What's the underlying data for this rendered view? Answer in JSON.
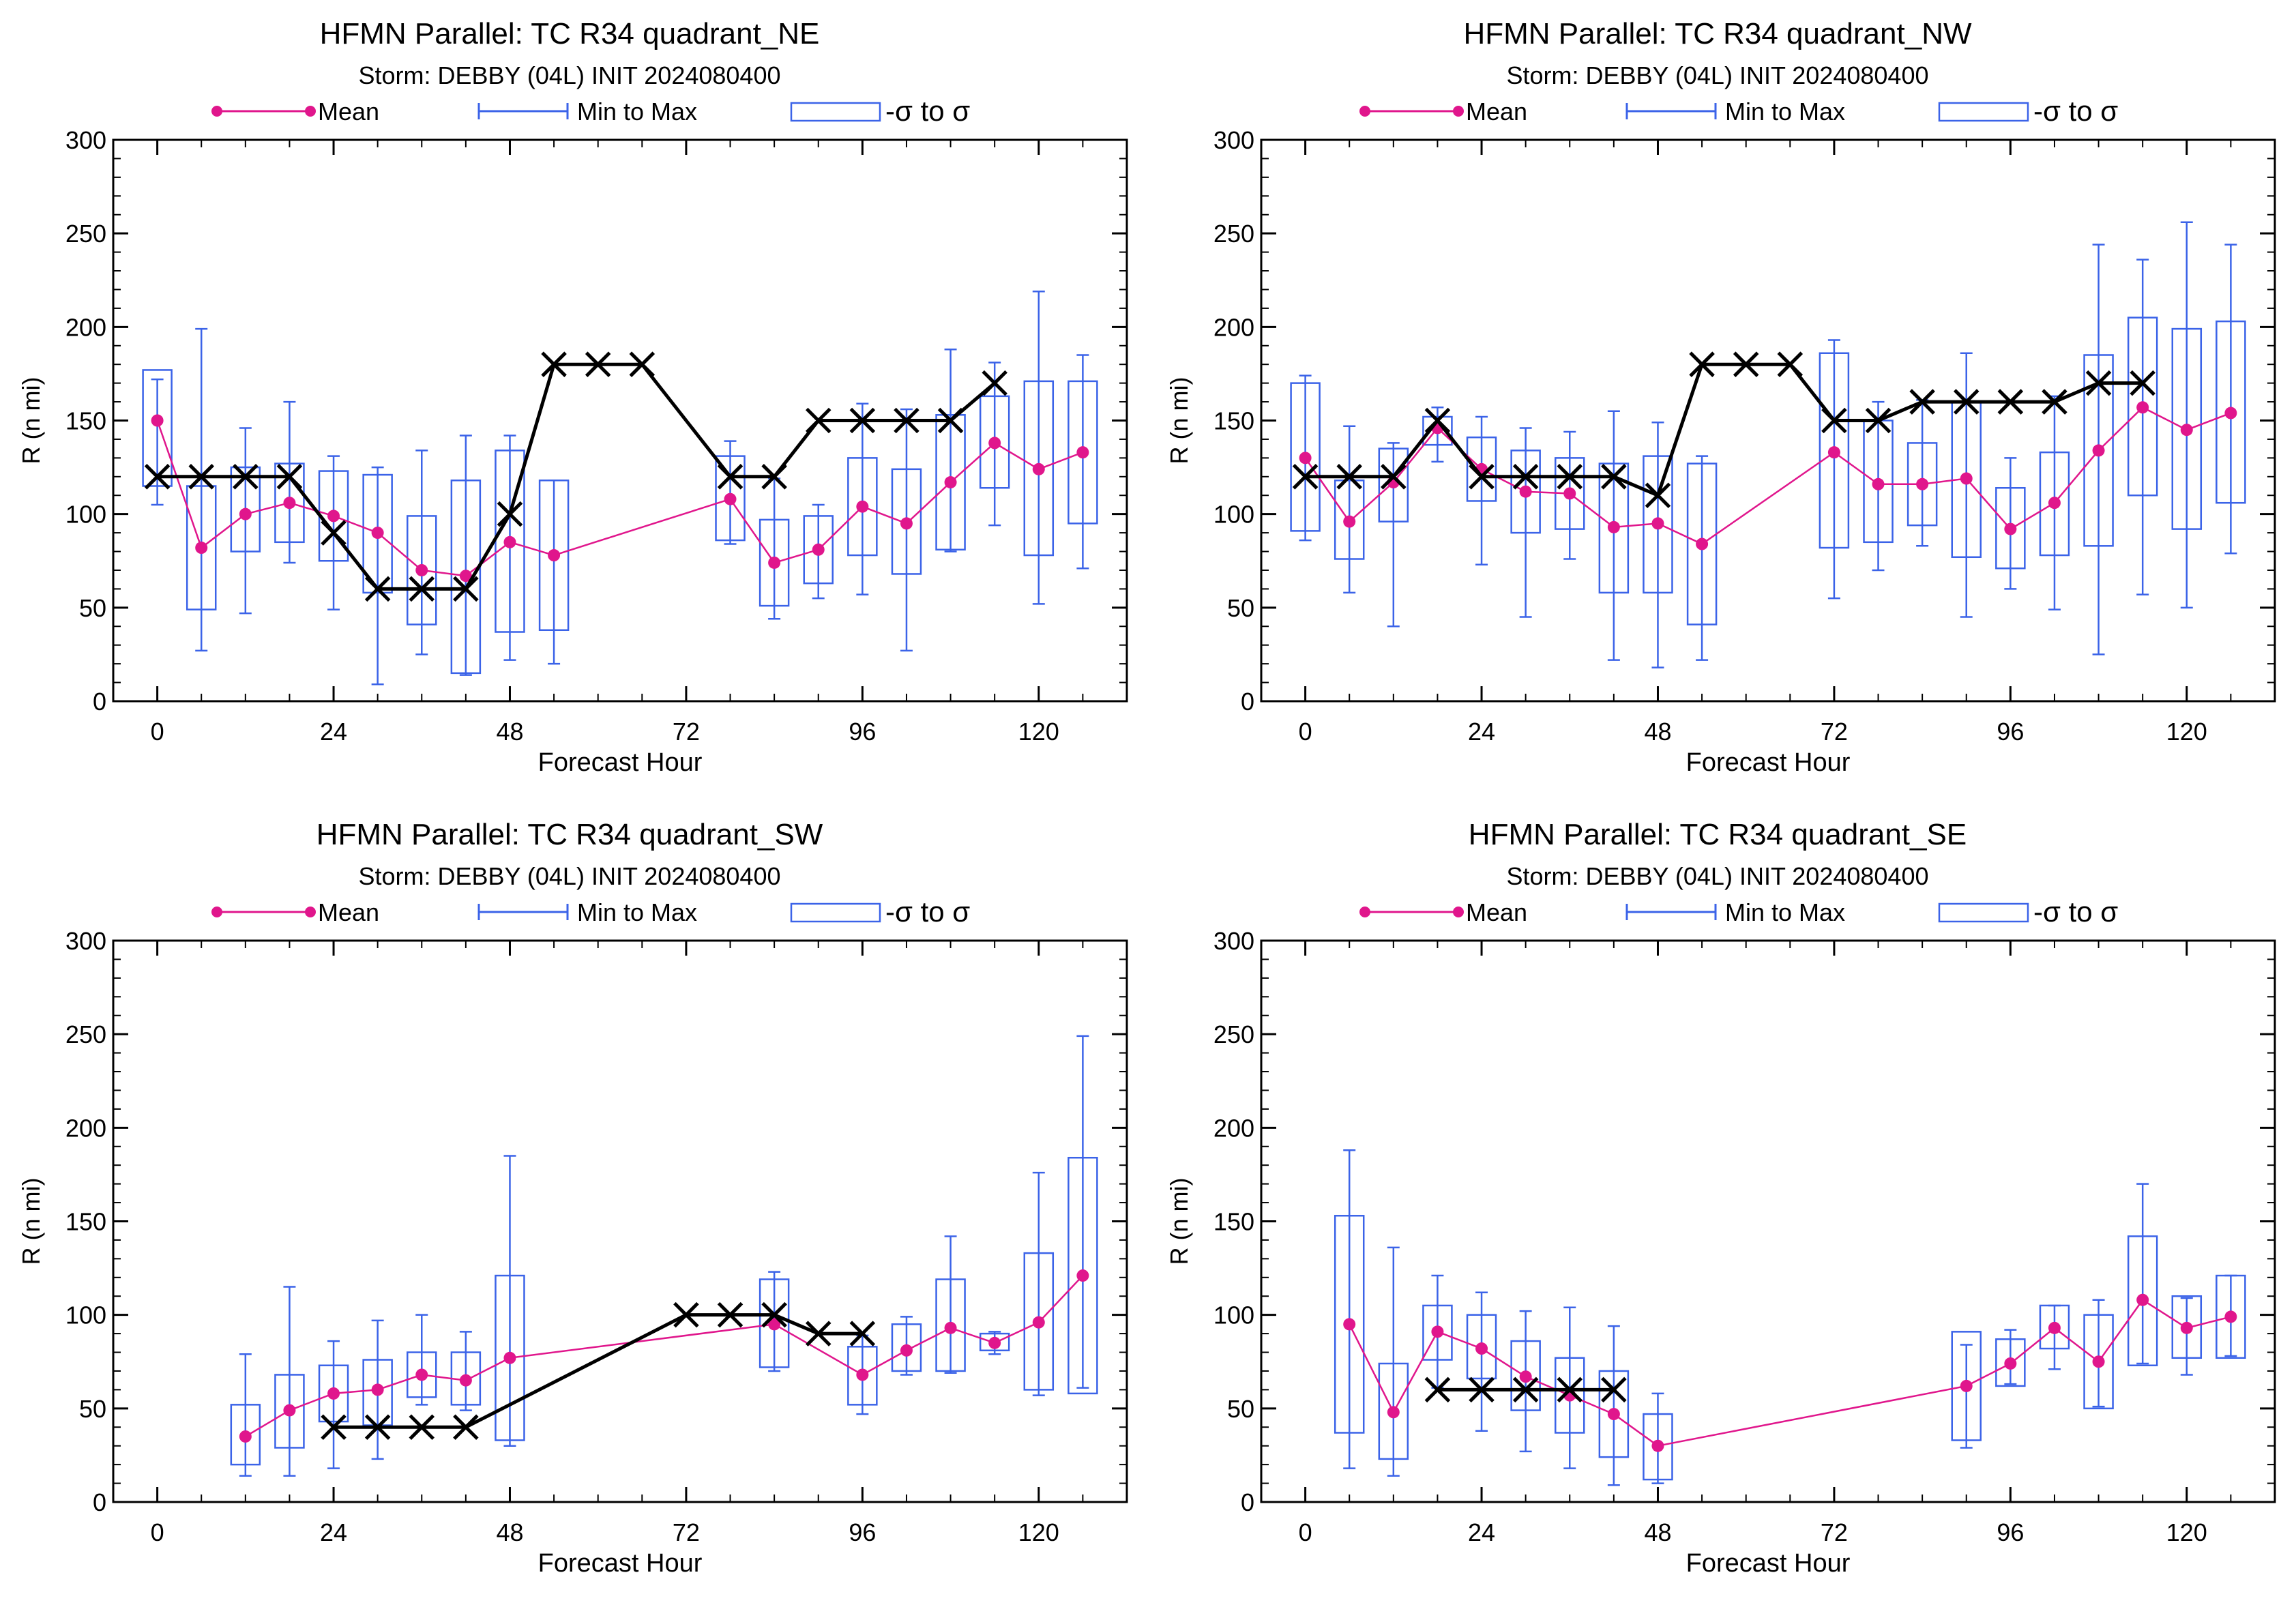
{
  "legend": {
    "mean_label": "Mean",
    "range_label": "Min to Max",
    "sigma_label": "-σ to σ"
  },
  "colors": {
    "mean": "#e0168c",
    "box": "#3b63e8",
    "best_track": "#000000",
    "axis": "#000000"
  },
  "chart_data": [
    {
      "type": "box",
      "title": "HFMN Parallel: TC  R34 quadrant_NE",
      "subtitle": "Storm: DEBBY (04L) INIT 2024080400",
      "xlabel": "Forecast Hour",
      "ylabel": "R (n mi)",
      "xlim": [
        -6,
        132
      ],
      "ylim": [
        0,
        300
      ],
      "xticks": [
        0,
        24,
        48,
        72,
        96,
        120
      ],
      "yticks": [
        0,
        50,
        100,
        150,
        200,
        250,
        300
      ],
      "grid": false,
      "legend_position": "top",
      "boxes": [
        {
          "x": 0,
          "min": 105,
          "max": 172,
          "lo": 115,
          "hi": 177,
          "mean": 150
        },
        {
          "x": 6,
          "min": 27,
          "max": 199,
          "lo": 49,
          "hi": 115,
          "mean": 82
        },
        {
          "x": 12,
          "min": 47,
          "max": 146,
          "lo": 80,
          "hi": 125,
          "mean": 100
        },
        {
          "x": 18,
          "min": 74,
          "max": 160,
          "lo": 85,
          "hi": 127,
          "mean": 106
        },
        {
          "x": 24,
          "min": 49,
          "max": 131,
          "lo": 75,
          "hi": 123,
          "mean": 99
        },
        {
          "x": 30,
          "min": 9,
          "max": 125,
          "lo": 58,
          "hi": 121,
          "mean": 90
        },
        {
          "x": 36,
          "min": 25,
          "max": 134,
          "lo": 41,
          "hi": 99,
          "mean": 70
        },
        {
          "x": 42,
          "min": 14,
          "max": 142,
          "lo": 15,
          "hi": 118,
          "mean": 67
        },
        {
          "x": 48,
          "min": 22,
          "max": 142,
          "lo": 37,
          "hi": 134,
          "mean": 85
        },
        {
          "x": 54,
          "min": 20,
          "max": 118,
          "lo": 38,
          "hi": 118,
          "mean": 78
        },
        {
          "x": 78,
          "min": 84,
          "max": 139,
          "lo": 86,
          "hi": 131,
          "mean": 108
        },
        {
          "x": 84,
          "min": 44,
          "max": 119,
          "lo": 51,
          "hi": 97,
          "mean": 74
        },
        {
          "x": 90,
          "min": 55,
          "max": 105,
          "lo": 63,
          "hi": 99,
          "mean": 81
        },
        {
          "x": 96,
          "min": 57,
          "max": 159,
          "lo": 78,
          "hi": 130,
          "mean": 104
        },
        {
          "x": 102,
          "min": 27,
          "max": 156,
          "lo": 68,
          "hi": 124,
          "mean": 95
        },
        {
          "x": 108,
          "min": 80,
          "max": 188,
          "lo": 81,
          "hi": 153,
          "mean": 117
        },
        {
          "x": 114,
          "min": 94,
          "max": 181,
          "lo": 114,
          "hi": 163,
          "mean": 138
        },
        {
          "x": 120,
          "min": 52,
          "max": 219,
          "lo": 78,
          "hi": 171,
          "mean": 124
        },
        {
          "x": 126,
          "min": 71,
          "max": 185,
          "lo": 95,
          "hi": 171,
          "mean": 133
        }
      ],
      "best_track": [
        [
          [
            0,
            120
          ],
          [
            6,
            120
          ],
          [
            12,
            120
          ],
          [
            18,
            120
          ],
          [
            24,
            90
          ],
          [
            30,
            60
          ],
          [
            36,
            60
          ],
          [
            42,
            60
          ],
          [
            48,
            100
          ],
          [
            54,
            180
          ],
          [
            60,
            180
          ],
          [
            66,
            180
          ],
          [
            78,
            120
          ],
          [
            84,
            120
          ],
          [
            90,
            150
          ],
          [
            96,
            150
          ],
          [
            102,
            150
          ],
          [
            108,
            150
          ],
          [
            114,
            170
          ]
        ]
      ]
    },
    {
      "type": "box",
      "title": "HFMN Parallel: TC  R34 quadrant_NW",
      "subtitle": "Storm: DEBBY (04L) INIT 2024080400",
      "xlabel": "Forecast Hour",
      "ylabel": "R (n mi)",
      "xlim": [
        -6,
        132
      ],
      "ylim": [
        0,
        300
      ],
      "xticks": [
        0,
        24,
        48,
        72,
        96,
        120
      ],
      "yticks": [
        0,
        50,
        100,
        150,
        200,
        250,
        300
      ],
      "grid": false,
      "legend_position": "top",
      "boxes": [
        {
          "x": 0,
          "min": 86,
          "max": 174,
          "lo": 91,
          "hi": 170,
          "mean": 130
        },
        {
          "x": 6,
          "min": 58,
          "max": 147,
          "lo": 76,
          "hi": 118,
          "mean": 96
        },
        {
          "x": 12,
          "min": 40,
          "max": 138,
          "lo": 96,
          "hi": 135,
          "mean": 117
        },
        {
          "x": 18,
          "min": 128,
          "max": 157,
          "lo": 137,
          "hi": 152,
          "mean": 146
        },
        {
          "x": 24,
          "min": 73,
          "max": 152,
          "lo": 107,
          "hi": 141,
          "mean": 124
        },
        {
          "x": 30,
          "min": 45,
          "max": 146,
          "lo": 90,
          "hi": 134,
          "mean": 112
        },
        {
          "x": 36,
          "min": 76,
          "max": 144,
          "lo": 92,
          "hi": 130,
          "mean": 111
        },
        {
          "x": 42,
          "min": 22,
          "max": 155,
          "lo": 58,
          "hi": 127,
          "mean": 93
        },
        {
          "x": 48,
          "min": 18,
          "max": 149,
          "lo": 58,
          "hi": 131,
          "mean": 95
        },
        {
          "x": 54,
          "min": 22,
          "max": 131,
          "lo": 41,
          "hi": 127,
          "mean": 84
        },
        {
          "x": 72,
          "min": 55,
          "max": 193,
          "lo": 82,
          "hi": 186,
          "mean": 133
        },
        {
          "x": 78,
          "min": 70,
          "max": 160,
          "lo": 85,
          "hi": 150,
          "mean": 116
        },
        {
          "x": 84,
          "min": 83,
          "max": 161,
          "lo": 94,
          "hi": 138,
          "mean": 116
        },
        {
          "x": 90,
          "min": 45,
          "max": 186,
          "lo": 77,
          "hi": 160,
          "mean": 119
        },
        {
          "x": 96,
          "min": 60,
          "max": 130,
          "lo": 71,
          "hi": 114,
          "mean": 92
        },
        {
          "x": 102,
          "min": 49,
          "max": 163,
          "lo": 78,
          "hi": 133,
          "mean": 106
        },
        {
          "x": 108,
          "min": 25,
          "max": 244,
          "lo": 83,
          "hi": 185,
          "mean": 134
        },
        {
          "x": 114,
          "min": 57,
          "max": 236,
          "lo": 110,
          "hi": 205,
          "mean": 157
        },
        {
          "x": 120,
          "min": 50,
          "max": 256,
          "lo": 92,
          "hi": 199,
          "mean": 145
        },
        {
          "x": 126,
          "min": 79,
          "max": 244,
          "lo": 106,
          "hi": 203,
          "mean": 154
        }
      ],
      "best_track": [
        [
          [
            0,
            120
          ],
          [
            6,
            120
          ],
          [
            12,
            120
          ],
          [
            18,
            150
          ],
          [
            24,
            120
          ],
          [
            30,
            120
          ],
          [
            36,
            120
          ],
          [
            42,
            120
          ],
          [
            48,
            110
          ],
          [
            54,
            180
          ],
          [
            60,
            180
          ],
          [
            66,
            180
          ],
          [
            72,
            150
          ],
          [
            78,
            150
          ],
          [
            84,
            160
          ],
          [
            90,
            160
          ],
          [
            96,
            160
          ],
          [
            102,
            160
          ],
          [
            108,
            170
          ],
          [
            114,
            170
          ]
        ]
      ]
    },
    {
      "type": "box",
      "title": "HFMN Parallel: TC  R34 quadrant_SW",
      "subtitle": "Storm: DEBBY (04L) INIT 2024080400",
      "xlabel": "Forecast Hour",
      "ylabel": "R (n mi)",
      "xlim": [
        -6,
        132
      ],
      "ylim": [
        0,
        300
      ],
      "xticks": [
        0,
        24,
        48,
        72,
        96,
        120
      ],
      "yticks": [
        0,
        50,
        100,
        150,
        200,
        250,
        300
      ],
      "grid": false,
      "legend_position": "top",
      "boxes": [
        {
          "x": 12,
          "min": 14,
          "max": 79,
          "lo": 20,
          "hi": 52,
          "mean": 35
        },
        {
          "x": 18,
          "min": 14,
          "max": 115,
          "lo": 29,
          "hi": 68,
          "mean": 49
        },
        {
          "x": 24,
          "min": 18,
          "max": 86,
          "lo": 43,
          "hi": 73,
          "mean": 58
        },
        {
          "x": 30,
          "min": 23,
          "max": 97,
          "lo": 41,
          "hi": 76,
          "mean": 60
        },
        {
          "x": 36,
          "min": 52,
          "max": 100,
          "lo": 56,
          "hi": 80,
          "mean": 68
        },
        {
          "x": 42,
          "min": 49,
          "max": 91,
          "lo": 52,
          "hi": 80,
          "mean": 65
        },
        {
          "x": 48,
          "min": 30,
          "max": 185,
          "lo": 33,
          "hi": 121,
          "mean": 77
        },
        {
          "x": 84,
          "min": 70,
          "max": 123,
          "lo": 72,
          "hi": 119,
          "mean": 95
        },
        {
          "x": 96,
          "min": 47,
          "max": 89,
          "lo": 52,
          "hi": 83,
          "mean": 68
        },
        {
          "x": 102,
          "min": 68,
          "max": 99,
          "lo": 70,
          "hi": 95,
          "mean": 81
        },
        {
          "x": 108,
          "min": 69,
          "max": 142,
          "lo": 70,
          "hi": 119,
          "mean": 93
        },
        {
          "x": 114,
          "min": 79,
          "max": 91,
          "lo": 81,
          "hi": 90,
          "mean": 85
        },
        {
          "x": 120,
          "min": 57,
          "max": 176,
          "lo": 60,
          "hi": 133,
          "mean": 96
        },
        {
          "x": 126,
          "min": 61,
          "max": 249,
          "lo": 58,
          "hi": 184,
          "mean": 121
        }
      ],
      "best_track": [
        [
          [
            24,
            40
          ],
          [
            30,
            40
          ],
          [
            36,
            40
          ],
          [
            42,
            40
          ],
          [
            72,
            100
          ],
          [
            78,
            100
          ],
          [
            84,
            100
          ],
          [
            90,
            90
          ],
          [
            96,
            90
          ]
        ]
      ]
    },
    {
      "type": "box",
      "title": "HFMN Parallel: TC  R34 quadrant_SE",
      "subtitle": "Storm: DEBBY (04L) INIT 2024080400",
      "xlabel": "Forecast Hour",
      "ylabel": "R (n mi)",
      "xlim": [
        -6,
        132
      ],
      "ylim": [
        0,
        300
      ],
      "xticks": [
        0,
        24,
        48,
        72,
        96,
        120
      ],
      "yticks": [
        0,
        50,
        100,
        150,
        200,
        250,
        300
      ],
      "grid": false,
      "legend_position": "top",
      "boxes": [
        {
          "x": 6,
          "min": 18,
          "max": 188,
          "lo": 37,
          "hi": 153,
          "mean": 95
        },
        {
          "x": 12,
          "min": 14,
          "max": 136,
          "lo": 23,
          "hi": 74,
          "mean": 48
        },
        {
          "x": 18,
          "min": 61,
          "max": 121,
          "lo": 76,
          "hi": 105,
          "mean": 91
        },
        {
          "x": 24,
          "min": 38,
          "max": 112,
          "lo": 66,
          "hi": 100,
          "mean": 82
        },
        {
          "x": 30,
          "min": 27,
          "max": 102,
          "lo": 49,
          "hi": 86,
          "mean": 67
        },
        {
          "x": 36,
          "min": 18,
          "max": 104,
          "lo": 37,
          "hi": 77,
          "mean": 57
        },
        {
          "x": 42,
          "min": 9,
          "max": 94,
          "lo": 24,
          "hi": 70,
          "mean": 47
        },
        {
          "x": 48,
          "min": 10,
          "max": 58,
          "lo": 12,
          "hi": 47,
          "mean": 30
        },
        {
          "x": 90,
          "min": 29,
          "max": 84,
          "lo": 33,
          "hi": 91,
          "mean": 62
        },
        {
          "x": 96,
          "min": 63,
          "max": 92,
          "lo": 62,
          "hi": 87,
          "mean": 74
        },
        {
          "x": 102,
          "min": 71,
          "max": 105,
          "lo": 82,
          "hi": 105,
          "mean": 93
        },
        {
          "x": 108,
          "min": 51,
          "max": 108,
          "lo": 50,
          "hi": 100,
          "mean": 75
        },
        {
          "x": 114,
          "min": 74,
          "max": 170,
          "lo": 73,
          "hi": 142,
          "mean": 108
        },
        {
          "x": 120,
          "min": 68,
          "max": 109,
          "lo": 77,
          "hi": 110,
          "mean": 93
        },
        {
          "x": 126,
          "min": 78,
          "max": 121,
          "lo": 77,
          "hi": 121,
          "mean": 99
        }
      ],
      "best_track": [
        [
          [
            18,
            60
          ],
          [
            24,
            60
          ],
          [
            30,
            60
          ],
          [
            36,
            60
          ],
          [
            42,
            60
          ]
        ]
      ]
    }
  ]
}
